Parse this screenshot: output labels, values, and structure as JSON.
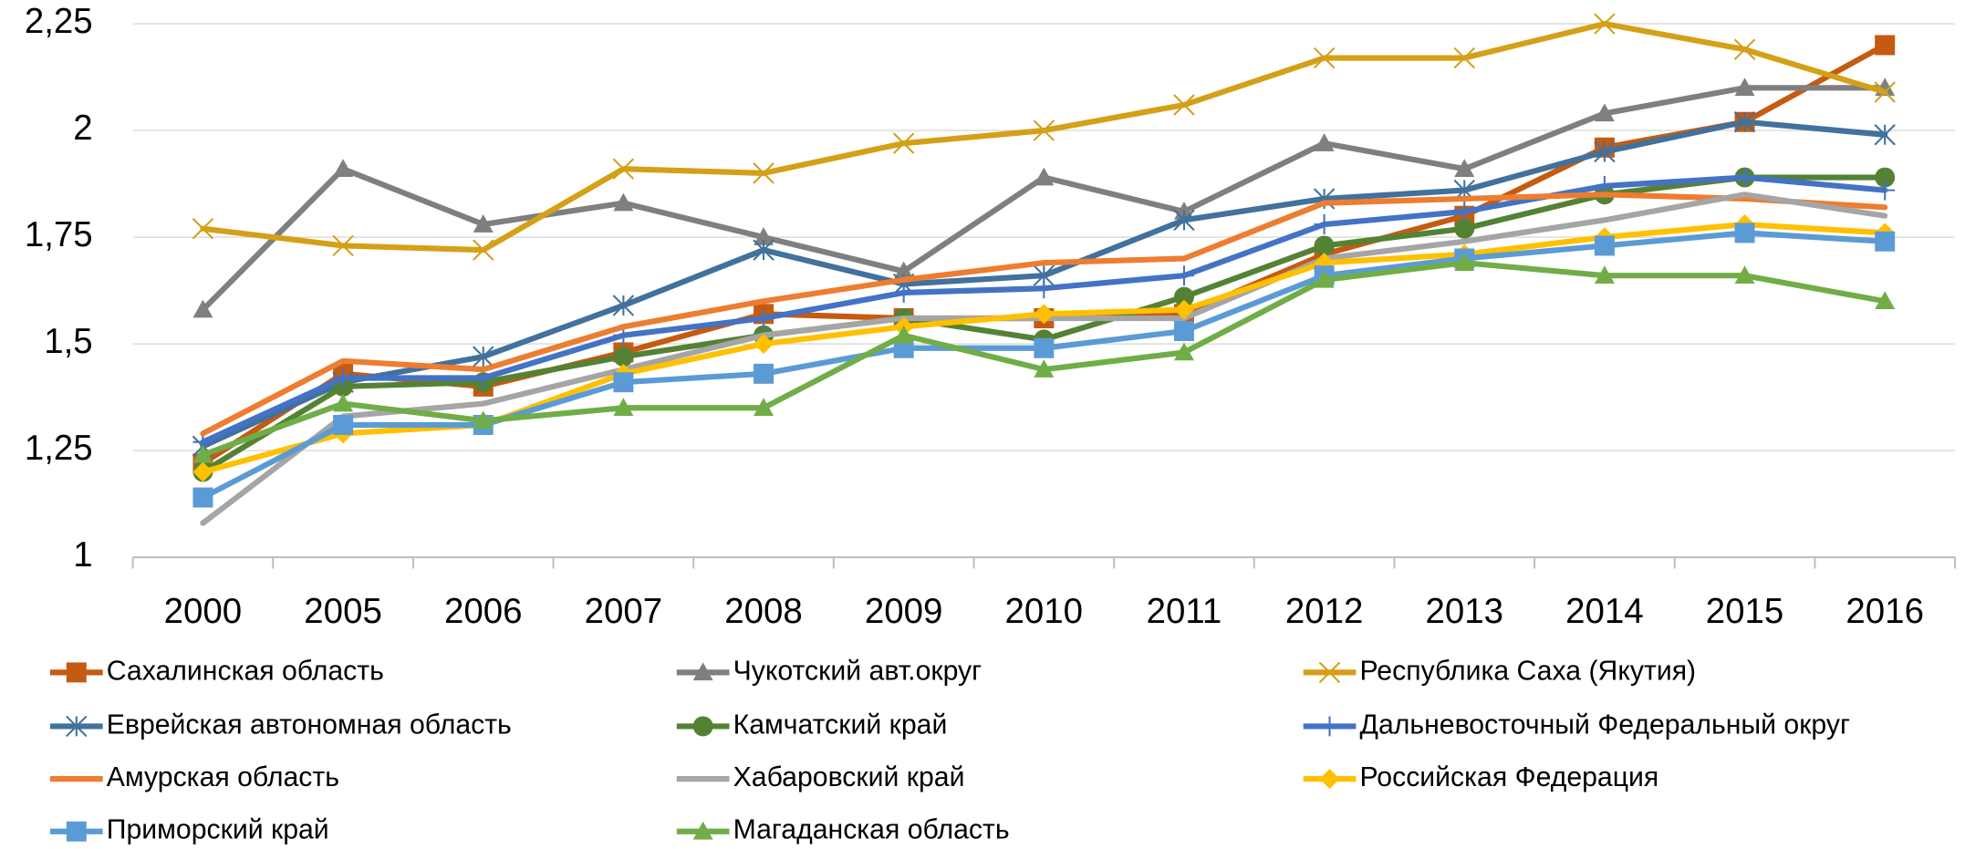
{
  "chart_data": {
    "type": "line",
    "categories": [
      "2000",
      "2005",
      "2006",
      "2007",
      "2008",
      "2009",
      "2010",
      "2011",
      "2012",
      "2013",
      "2014",
      "2015",
      "2016"
    ],
    "ylim": [
      1,
      2.25
    ],
    "yticks": [
      1,
      {
        "value": 1.25,
        "label": "1,25"
      },
      {
        "value": 1.5,
        "label": "1,5"
      },
      {
        "value": 1.75,
        "label": "1,75"
      },
      2,
      {
        "value": 2.25,
        "label": "2,25"
      }
    ],
    "grid": true,
    "legend": "bottom",
    "series": [
      {
        "name": "Сахалинская область",
        "color": "#c55a11",
        "marker": "square",
        "values": [
          1.22,
          1.43,
          1.4,
          1.48,
          1.57,
          1.56,
          1.56,
          1.57,
          1.71,
          1.8,
          1.96,
          2.02,
          2.2
        ]
      },
      {
        "name": "Чукотский авт.округ",
        "color": "#7f7f7f",
        "marker": "triangle",
        "values": [
          1.58,
          1.91,
          1.78,
          1.83,
          1.75,
          1.67,
          1.89,
          1.81,
          1.97,
          1.91,
          2.04,
          2.1,
          2.1
        ]
      },
      {
        "name": "Республика Саха (Якутия)",
        "color": "#d4a017",
        "marker": "x",
        "values": [
          1.77,
          1.73,
          1.72,
          1.91,
          1.9,
          1.97,
          2.0,
          2.06,
          2.17,
          2.17,
          2.25,
          2.19,
          2.09
        ]
      },
      {
        "name": "Еврейская автономная область",
        "color": "#41719c",
        "marker": "asterisk",
        "values": [
          1.26,
          1.41,
          1.47,
          1.59,
          1.72,
          1.64,
          1.66,
          1.79,
          1.84,
          1.86,
          1.95,
          2.02,
          1.99
        ]
      },
      {
        "name": "Камчатский край",
        "color": "#548235",
        "marker": "circle",
        "values": [
          1.2,
          1.4,
          1.41,
          1.47,
          1.52,
          1.56,
          1.51,
          1.61,
          1.73,
          1.77,
          1.85,
          1.89,
          1.89
        ]
      },
      {
        "name": "Дальневосточный Федеральный округ",
        "color": "#4472c4",
        "marker": "plus",
        "values": [
          1.27,
          1.42,
          1.42,
          1.52,
          1.56,
          1.62,
          1.63,
          1.66,
          1.78,
          1.81,
          1.87,
          1.89,
          1.86
        ]
      },
      {
        "name": "Амурская область",
        "color": "#ed7d31",
        "marker": "none",
        "values": [
          1.29,
          1.46,
          1.44,
          1.54,
          1.6,
          1.65,
          1.69,
          1.7,
          1.83,
          1.84,
          1.85,
          1.84,
          1.82
        ]
      },
      {
        "name": "Хабаровский край",
        "color": "#a5a5a5",
        "marker": "none",
        "values": [
          1.08,
          1.33,
          1.36,
          1.44,
          1.52,
          1.56,
          1.56,
          1.56,
          1.7,
          1.74,
          1.79,
          1.85,
          1.8
        ]
      },
      {
        "name": "Российская Федерация",
        "color": "#ffc000",
        "marker": "diamond",
        "values": [
          1.2,
          1.29,
          1.31,
          1.43,
          1.5,
          1.54,
          1.57,
          1.58,
          1.69,
          1.71,
          1.75,
          1.78,
          1.76
        ]
      },
      {
        "name": "Приморский край",
        "color": "#5b9bd5",
        "marker": "square",
        "values": [
          1.14,
          1.31,
          1.31,
          1.41,
          1.43,
          1.49,
          1.49,
          1.53,
          1.66,
          1.7,
          1.73,
          1.76,
          1.74
        ]
      },
      {
        "name": "Магаданская область",
        "color": "#70ad47",
        "marker": "triangle",
        "values": [
          1.24,
          1.36,
          1.32,
          1.35,
          1.35,
          1.52,
          1.44,
          1.48,
          1.65,
          1.69,
          1.66,
          1.66,
          1.6
        ]
      }
    ]
  }
}
